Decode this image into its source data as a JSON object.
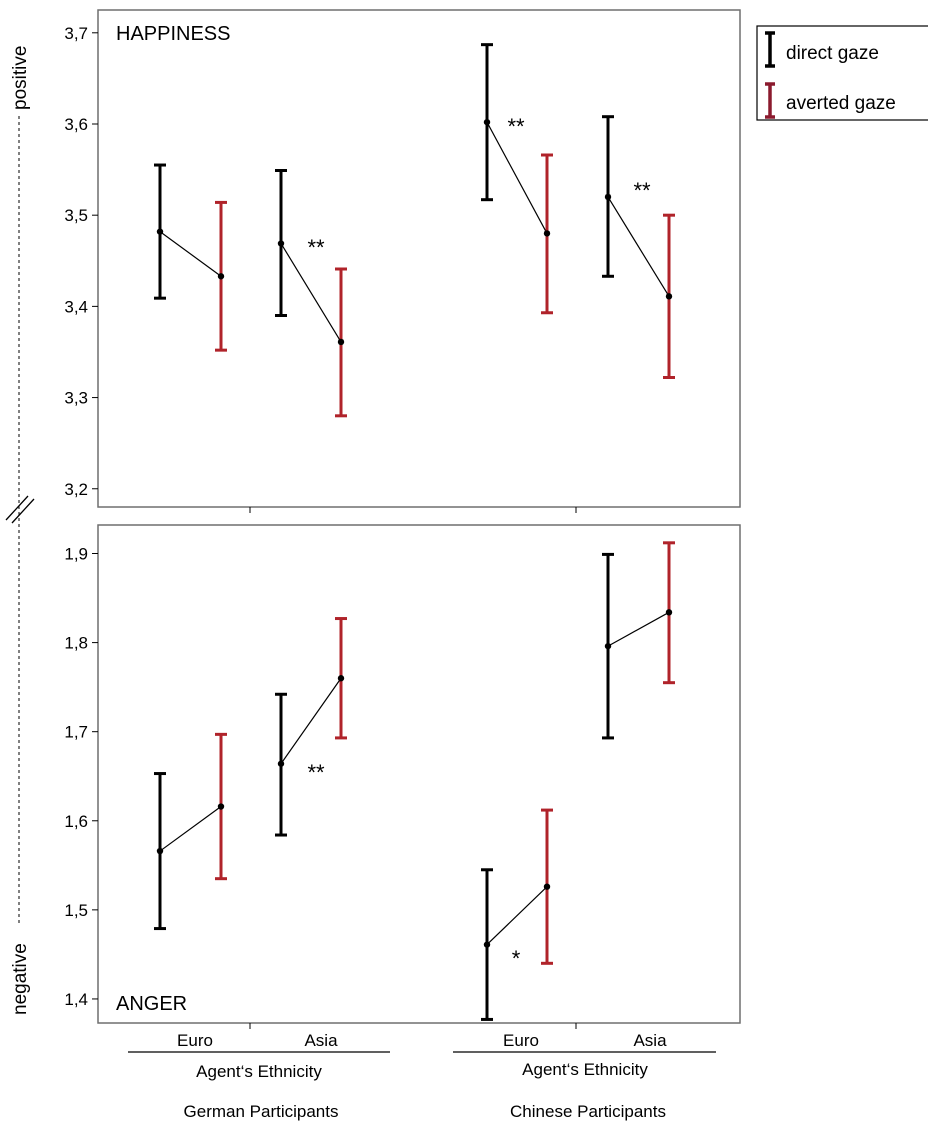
{
  "chart_data": [
    {
      "type": "line",
      "panel_label": "HAPPINESS",
      "ylim": [
        3.18,
        3.725
      ],
      "yticks": [
        "3,7",
        "3,6",
        "3,5",
        "3,4",
        "3,3",
        "3,2"
      ],
      "ytick_values": [
        3.7,
        3.6,
        3.5,
        3.4,
        3.3,
        3.2
      ],
      "groups": [
        {
          "participants": "German Participants",
          "ethnicity": "Euro",
          "direct": {
            "mean": 3.482,
            "lower": 3.409,
            "upper": 3.555
          },
          "averted": {
            "mean": 3.433,
            "lower": 3.352,
            "upper": 3.514
          },
          "sig": ""
        },
        {
          "participants": "German Participants",
          "ethnicity": "Asia",
          "direct": {
            "mean": 3.469,
            "lower": 3.39,
            "upper": 3.549
          },
          "averted": {
            "mean": 3.361,
            "lower": 3.28,
            "upper": 3.441
          },
          "sig": "**"
        },
        {
          "participants": "Chinese Participants",
          "ethnicity": "Euro",
          "direct": {
            "mean": 3.602,
            "lower": 3.517,
            "upper": 3.687
          },
          "averted": {
            "mean": 3.48,
            "lower": 3.393,
            "upper": 3.566
          },
          "sig": "**"
        },
        {
          "participants": "Chinese Participants",
          "ethnicity": "Asia",
          "direct": {
            "mean": 3.52,
            "lower": 3.433,
            "upper": 3.608
          },
          "averted": {
            "mean": 3.411,
            "lower": 3.322,
            "upper": 3.5
          },
          "sig": "**"
        }
      ]
    },
    {
      "type": "line",
      "panel_label": "ANGER",
      "ylim": [
        1.373,
        1.932
      ],
      "yticks": [
        "1,9",
        "1,8",
        "1,7",
        "1,6",
        "1,5",
        "1,4"
      ],
      "ytick_values": [
        1.9,
        1.8,
        1.7,
        1.6,
        1.5,
        1.4
      ],
      "groups": [
        {
          "participants": "German Participants",
          "ethnicity": "Euro",
          "direct": {
            "mean": 1.566,
            "lower": 1.479,
            "upper": 1.653
          },
          "averted": {
            "mean": 1.616,
            "lower": 1.535,
            "upper": 1.697
          },
          "sig": ""
        },
        {
          "participants": "German Participants",
          "ethnicity": "Asia",
          "direct": {
            "mean": 1.664,
            "lower": 1.584,
            "upper": 1.742
          },
          "averted": {
            "mean": 1.76,
            "lower": 1.693,
            "upper": 1.827
          },
          "sig": "**"
        },
        {
          "participants": "Chinese Participants",
          "ethnicity": "Euro",
          "direct": {
            "mean": 1.461,
            "lower": 1.377,
            "upper": 1.545
          },
          "averted": {
            "mean": 1.526,
            "lower": 1.44,
            "upper": 1.612
          },
          "sig": "*"
        },
        {
          "participants": "Chinese Participants",
          "ethnicity": "Asia",
          "direct": {
            "mean": 1.796,
            "lower": 1.693,
            "upper": 1.899
          },
          "averted": {
            "mean": 1.834,
            "lower": 1.755,
            "upper": 1.912
          },
          "sig": ""
        }
      ]
    }
  ],
  "x_axis": {
    "categories": [
      "Euro",
      "Asia",
      "Euro",
      "Asia"
    ],
    "sublabel": "Agent‘s Ethnicity",
    "groups": [
      "German Participants",
      "Chinese Participants"
    ]
  },
  "side_labels": {
    "top": "positive",
    "bottom": "negative"
  },
  "legend": {
    "position": "top-right",
    "items": [
      {
        "label": "direct gaze",
        "color": "#000000"
      },
      {
        "label": "averted gaze",
        "color": "#8b1a2e"
      }
    ]
  },
  "colors": {
    "direct": "#000000",
    "averted": "#b0232a",
    "frame": "#6f6f6f"
  }
}
